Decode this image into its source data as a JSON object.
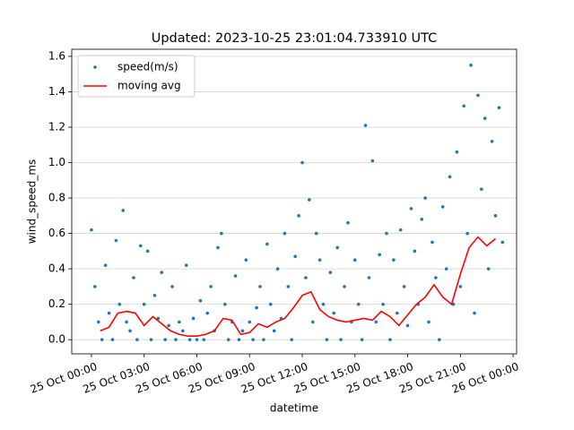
{
  "chart_data": {
    "type": "scatter",
    "title": "Updated: 2023-10-25 23:01:04.733910 UTC",
    "x_label": "datetime",
    "y_label": "wind_speed_ms",
    "xlim": [
      -1.12,
      24.2
    ],
    "ylim": [
      -0.08,
      1.64
    ],
    "xticks": [
      {
        "value": 0,
        "label": "25 Oct 00:00"
      },
      {
        "value": 3,
        "label": "25 Oct 03:00"
      },
      {
        "value": 6,
        "label": "25 Oct 06:00"
      },
      {
        "value": 9,
        "label": "25 Oct 09:00"
      },
      {
        "value": 12,
        "label": "25 Oct 12:00"
      },
      {
        "value": 15,
        "label": "25 Oct 15:00"
      },
      {
        "value": 18,
        "label": "25 Oct 18:00"
      },
      {
        "value": 21,
        "label": "25 Oct 21:00"
      },
      {
        "value": 24,
        "label": "26 Oct 00:00"
      }
    ],
    "yticks": [
      {
        "value": 0,
        "label": "0.0"
      },
      0.2,
      0.4,
      0.6,
      0.8,
      {
        "value": 1,
        "label": "1.0"
      },
      1.2,
      1.4,
      1.6
    ],
    "grid": "y",
    "legend": "upper left",
    "series": [
      {
        "name": "speed(m/s)",
        "type": "scatter",
        "color": "#1f77b4",
        "x": [
          0,
          0.2,
          0.4,
          0.6,
          0.8,
          1,
          1.2,
          1.4,
          1.6,
          1.8,
          2,
          2.2,
          2.4,
          2.6,
          2.8,
          3,
          3.2,
          3.4,
          3.6,
          3.8,
          4,
          4.2,
          4.4,
          4.6,
          4.8,
          5,
          5.2,
          5.4,
          5.6,
          5.8,
          6,
          6.2,
          6.4,
          6.6,
          6.8,
          7,
          7.2,
          7.4,
          7.6,
          7.8,
          8,
          8.2,
          8.4,
          8.6,
          8.8,
          9,
          9.2,
          9.4,
          9.6,
          9.8,
          10,
          10.2,
          10.4,
          10.6,
          10.8,
          11,
          11.2,
          11.4,
          11.6,
          11.8,
          12,
          12.2,
          12.4,
          12.6,
          12.8,
          13,
          13.2,
          13.4,
          13.6,
          13.8,
          14,
          14.2,
          14.4,
          14.6,
          14.8,
          15,
          15.2,
          15.4,
          15.6,
          15.8,
          16,
          16.2,
          16.4,
          16.6,
          16.8,
          17,
          17.2,
          17.4,
          17.6,
          17.8,
          18,
          18.2,
          18.4,
          18.6,
          18.8,
          19,
          19.2,
          19.4,
          19.6,
          19.8,
          20,
          20.2,
          20.4,
          20.6,
          20.8,
          21,
          21.2,
          21.4,
          21.6,
          21.8,
          22,
          22.2,
          22.4,
          22.6,
          22.8,
          23,
          23.2,
          23.4
        ],
        "values": [
          0.62,
          0.3,
          0.1,
          0,
          0.42,
          0.15,
          0,
          0.56,
          0.2,
          0.73,
          0.1,
          0.05,
          0.35,
          0,
          0.53,
          0.2,
          0.5,
          0,
          0.25,
          0.12,
          0.38,
          0,
          0.08,
          0.3,
          0,
          0.1,
          0.05,
          0.42,
          0,
          0.12,
          0,
          0.22,
          0,
          0.15,
          0.3,
          0.05,
          0.52,
          0.6,
          0.2,
          0,
          0.1,
          0.36,
          0,
          0.05,
          0.45,
          0.1,
          0,
          0.18,
          0.3,
          0,
          0.54,
          0.2,
          0.05,
          0.4,
          0.12,
          0.6,
          0.3,
          0,
          0.47,
          0.7,
          1,
          0.35,
          0.79,
          0.1,
          0.6,
          0.45,
          0.2,
          0,
          0.38,
          0.15,
          0.52,
          0,
          0.3,
          0.66,
          0.1,
          0.45,
          0.2,
          0,
          1.21,
          0.35,
          1.01,
          0.1,
          0.48,
          0.2,
          0.6,
          0,
          0.45,
          0.15,
          0.62,
          0.3,
          0.08,
          0.74,
          0.5,
          0.2,
          0.68,
          0.8,
          0.1,
          0.55,
          0.35,
          0,
          0.75,
          0.4,
          0.92,
          0.2,
          1.06,
          0.3,
          1.32,
          0.6,
          1.55,
          0.15,
          1.38,
          0.85,
          1.25,
          0.4,
          1.12,
          0.7,
          1.31,
          0.55
        ]
      },
      {
        "name": "moving avg",
        "type": "line",
        "color": "#ff0000",
        "x": [
          0.5,
          1,
          1.5,
          2,
          2.5,
          3,
          3.5,
          4,
          4.5,
          5,
          5.5,
          6,
          6.5,
          7,
          7.5,
          8,
          8.5,
          9,
          9.5,
          10,
          10.5,
          11,
          11.5,
          12,
          12.5,
          13,
          13.5,
          14,
          14.5,
          15,
          15.5,
          16,
          16.5,
          17,
          17.5,
          18,
          18.5,
          19,
          19.5,
          20,
          20.5,
          21,
          21.5,
          22,
          22.5,
          23
        ],
        "values": [
          0.05,
          0.07,
          0.15,
          0.16,
          0.15,
          0.08,
          0.13,
          0.09,
          0.05,
          0.03,
          0.02,
          0.02,
          0.03,
          0.05,
          0.12,
          0.11,
          0.03,
          0.04,
          0.09,
          0.07,
          0.1,
          0.12,
          0.18,
          0.25,
          0.27,
          0.17,
          0.13,
          0.11,
          0.1,
          0.11,
          0.12,
          0.11,
          0.16,
          0.13,
          0.08,
          0.14,
          0.2,
          0.24,
          0.31,
          0.24,
          0.2,
          0.37,
          0.52,
          0.58,
          0.53,
          0.57
        ]
      }
    ]
  }
}
